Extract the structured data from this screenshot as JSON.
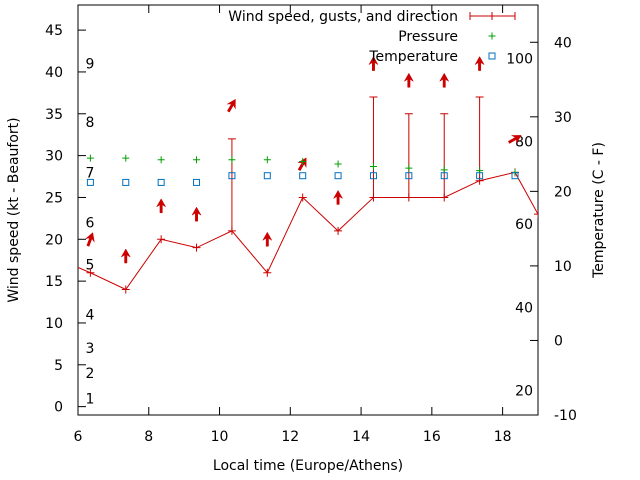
{
  "chart_data": {
    "type": "line",
    "xlabel": "Local time (Europe/Athens)",
    "ylabel_left": "Wind speed (kt - Beaufort)",
    "ylabel_right": "Temperature (C - F)",
    "xlim": [
      6,
      19
    ],
    "ylim_left": [
      -1,
      48
    ],
    "ylim_right": [
      -10,
      45
    ],
    "x_ticks": [
      6,
      8,
      10,
      12,
      14,
      16,
      18
    ],
    "y_ticks_left": [
      0,
      5,
      10,
      15,
      20,
      25,
      30,
      35,
      40,
      45
    ],
    "y_ticks_right": [
      -10,
      0,
      10,
      20,
      30,
      40
    ],
    "beaufort_labels": [
      {
        "label": "1",
        "kt": 1
      },
      {
        "label": "2",
        "kt": 4
      },
      {
        "label": "3",
        "kt": 7
      },
      {
        "label": "4",
        "kt": 11
      },
      {
        "label": "5",
        "kt": 17
      },
      {
        "label": "6",
        "kt": 22
      },
      {
        "label": "7",
        "kt": 28
      },
      {
        "label": "8",
        "kt": 34
      },
      {
        "label": "9",
        "kt": 41
      }
    ],
    "fahrenheit_labels": [
      {
        "label": "20",
        "celsius": -6.7
      },
      {
        "label": "40",
        "celsius": 4.4
      },
      {
        "label": "60",
        "celsius": 15.6
      },
      {
        "label": "80",
        "celsius": 26.7
      },
      {
        "label": "100",
        "celsius": 37.8
      }
    ],
    "legend": [
      {
        "name": "Wind speed, gusts, and direction",
        "color": "#cc0000",
        "marker": "line"
      },
      {
        "name": "Pressure",
        "color": "#00a000",
        "marker": "plus"
      },
      {
        "name": "Temperature",
        "color": "#0070c0",
        "marker": "square"
      }
    ],
    "legend_position": "top-right",
    "grid": false,
    "series": [
      {
        "name": "Wind speed, gusts, and direction",
        "x": [
          5.8,
          6.35,
          7.35,
          8.35,
          9.35,
          10.35,
          11.35,
          12.35,
          13.35,
          14.35,
          15.35,
          16.35,
          17.35,
          18.35,
          19.0
        ],
        "values": [
          17,
          16,
          14,
          20,
          19,
          21,
          16,
          25,
          21,
          25,
          25,
          25,
          27,
          28,
          23
        ]
      },
      {
        "name": "gusts",
        "x": [
          10.35,
          14.35,
          15.35,
          16.35,
          17.35
        ],
        "low": [
          21,
          25,
          25,
          25,
          27
        ],
        "high": [
          32,
          37,
          35,
          35,
          37
        ]
      },
      {
        "name": "direction",
        "x": [
          6.35,
          7.35,
          8.35,
          9.35,
          10.35,
          11.35,
          12.35,
          13.35,
          14.35,
          15.35,
          16.35,
          17.35,
          18.35
        ],
        "y": [
          20,
          18,
          24,
          23,
          36,
          20,
          29,
          25,
          41,
          39,
          39,
          41,
          32
        ],
        "rotation_deg": [
          20,
          0,
          0,
          0,
          30,
          0,
          30,
          0,
          0,
          0,
          0,
          0,
          60
        ]
      },
      {
        "name": "Pressure",
        "x": [
          6.35,
          7.35,
          8.35,
          9.35,
          10.35,
          11.35,
          12.35,
          13.35,
          14.35,
          15.35,
          16.35,
          17.35,
          18.35
        ],
        "values": [
          29.7,
          29.7,
          29.5,
          29.5,
          29.5,
          29.5,
          29.3,
          29.0,
          28.7,
          28.5,
          28.3,
          28.2,
          28.0
        ]
      },
      {
        "name": "Temperature",
        "x": [
          6.35,
          7.35,
          8.35,
          9.35,
          10.35,
          11.35,
          12.35,
          13.35,
          14.35,
          15.35,
          16.35,
          17.35,
          18.35
        ],
        "values": [
          21.2,
          21.2,
          21.2,
          21.2,
          22.1,
          22.1,
          22.1,
          22.1,
          22.1,
          22.1,
          22.1,
          22.1,
          22.1
        ]
      }
    ]
  }
}
